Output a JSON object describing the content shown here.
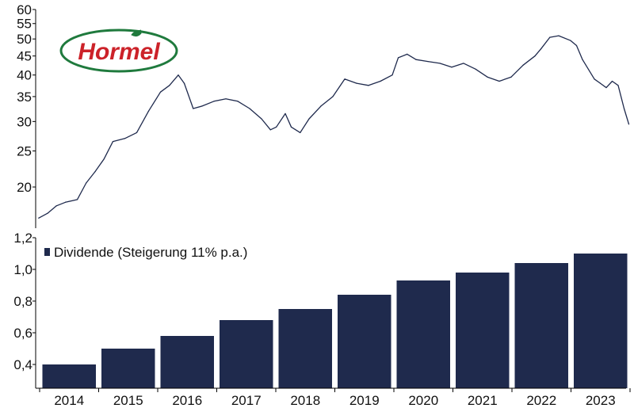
{
  "colors": {
    "navy": "#1f2a4d",
    "logo_red": "#cc2229",
    "logo_green": "#1f7a3d"
  },
  "logo": {
    "text": "Hormel",
    "icon": "leaf-icon"
  },
  "chart_data": [
    {
      "type": "line",
      "title": "",
      "xlabel": "",
      "ylabel": "",
      "y_scale": "log",
      "ylim": [
        15.5,
        60
      ],
      "yticks": [
        20,
        25,
        30,
        35,
        40,
        45,
        50,
        55,
        60
      ],
      "xlim": [
        2013.5,
        2023.5
      ],
      "grid": false,
      "series": [
        {
          "x": [
            2013.55,
            2013.7,
            2013.85,
            2014.0,
            2014.2,
            2014.35,
            2014.5,
            2014.65,
            2014.8,
            2015.0,
            2015.2,
            2015.4,
            2015.6,
            2015.75,
            2015.9,
            2016.0,
            2016.15,
            2016.3,
            2016.5,
            2016.7,
            2016.9,
            2017.1,
            2017.3,
            2017.45,
            2017.55,
            2017.7,
            2017.8,
            2017.95,
            2018.1,
            2018.3,
            2018.5,
            2018.7,
            2018.9,
            2019.1,
            2019.3,
            2019.5,
            2019.6,
            2019.75,
            2019.9,
            2020.1,
            2020.3,
            2020.5,
            2020.7,
            2020.9,
            2021.1,
            2021.3,
            2021.5,
            2021.7,
            2021.9,
            2022.0,
            2022.15,
            2022.3,
            2022.5,
            2022.6,
            2022.7,
            2022.9,
            2023.0,
            2023.1,
            2023.2,
            2023.3,
            2023.4,
            2023.48
          ],
          "values": [
            16.5,
            17.0,
            17.8,
            18.2,
            18.5,
            20.5,
            22.0,
            23.8,
            26.5,
            27.0,
            28.0,
            32.0,
            36.0,
            37.5,
            40.0,
            38.0,
            32.5,
            33.0,
            34.0,
            34.5,
            34.0,
            32.5,
            30.5,
            28.5,
            29.0,
            31.5,
            29.0,
            28.0,
            30.5,
            33.0,
            35.0,
            39.0,
            38.0,
            37.5,
            38.5,
            40.0,
            44.5,
            45.5,
            44.0,
            43.5,
            43.0,
            42.0,
            43.0,
            41.5,
            39.5,
            38.5,
            39.5,
            42.5,
            45.0,
            47.0,
            50.5,
            51.0,
            49.5,
            48.0,
            44.0,
            39.0,
            38.0,
            37.0,
            38.5,
            37.5,
            32.5,
            29.5
          ]
        }
      ]
    },
    {
      "type": "bar",
      "title": "",
      "xlabel": "",
      "ylabel": "",
      "categories": [
        "2014",
        "2015",
        "2016",
        "2017",
        "2018",
        "2019",
        "2020",
        "2021",
        "2022",
        "2023"
      ],
      "ylim": [
        0.25,
        1.2
      ],
      "yticks": [
        0.4,
        0.6,
        0.8,
        1.0,
        1.2
      ],
      "ytick_labels": [
        "0,4",
        "0,6",
        "0,8",
        "1,0",
        "1,2"
      ],
      "legend": "top-left",
      "grid": false,
      "series": [
        {
          "name": "Dividende (Steigerung 11% p.a.)",
          "values": [
            0.4,
            0.5,
            0.58,
            0.68,
            0.75,
            0.84,
            0.93,
            0.98,
            1.04,
            1.1
          ]
        }
      ]
    }
  ]
}
